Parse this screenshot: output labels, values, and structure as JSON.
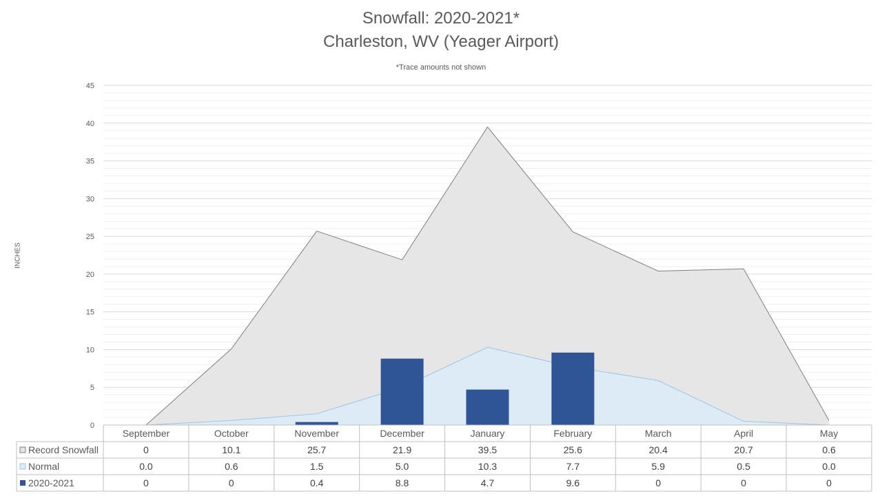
{
  "title": "Snowfall: 2020-2021*",
  "subtitle": "Charleston, WV (Yeager Airport)",
  "note": "*Trace amounts not shown",
  "chart_data": {
    "type": "bar",
    "title": "Snowfall: 2020-2021*",
    "subtitle": "Charleston, WV (Yeager Airport)",
    "annotation": "*Trace amounts not shown",
    "xlabel": "",
    "ylabel": "INCHES",
    "ylim": [
      0,
      45
    ],
    "yticks": [
      0,
      5,
      10,
      15,
      20,
      25,
      30,
      35,
      40,
      45
    ],
    "grid": true,
    "legend": "data-table",
    "categories": [
      "September",
      "October",
      "November",
      "December",
      "January",
      "February",
      "March",
      "April",
      "May"
    ],
    "series": [
      {
        "name": "Record Snowfall",
        "type": "area",
        "color": "#e7e6e6",
        "line_color": "#7f7f7f",
        "values": [
          0,
          10.1,
          25.7,
          21.9,
          39.5,
          25.6,
          20.4,
          20.7,
          0.6
        ],
        "labels": [
          "0",
          "10.1",
          "25.7",
          "21.9",
          "39.5",
          "25.6",
          "20.4",
          "20.7",
          "0.6"
        ]
      },
      {
        "name": "Normal",
        "type": "area",
        "color": "#ddebf7",
        "line_color": "#9dc3e6",
        "values": [
          0.0,
          0.6,
          1.5,
          5.0,
          10.3,
          7.7,
          5.9,
          0.5,
          0.0
        ],
        "labels": [
          "0.0",
          "0.6",
          "1.5",
          "5.0",
          "10.3",
          "7.7",
          "5.9",
          "0.5",
          "0.0"
        ]
      },
      {
        "name": "2020-2021",
        "type": "bar",
        "color": "#2f5597",
        "values": [
          0,
          0,
          0.4,
          8.8,
          4.7,
          9.6,
          0,
          0,
          0
        ],
        "labels": [
          "0",
          "0",
          "0.4",
          "8.8",
          "4.7",
          "9.6",
          "0",
          "0",
          "0"
        ]
      }
    ]
  }
}
